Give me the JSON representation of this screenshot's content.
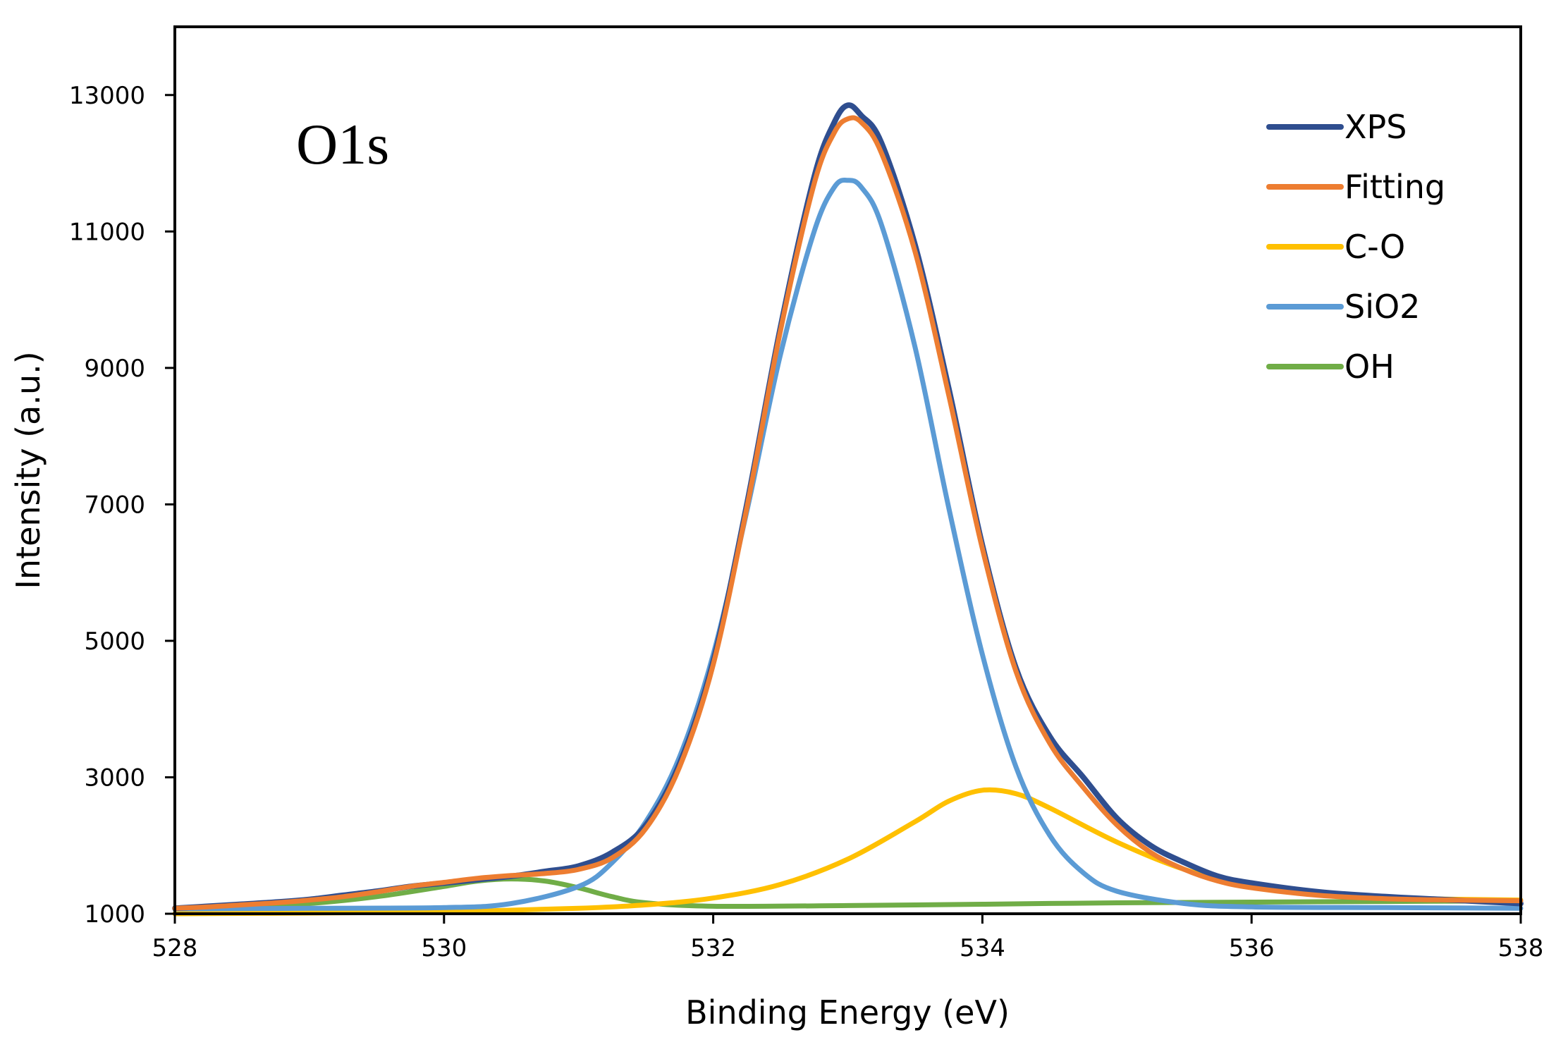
{
  "chart_data": {
    "type": "line",
    "title": "",
    "panel_label": "O1s",
    "xlabel": "Binding Energy (eV)",
    "ylabel": "Intensity (a.u.)",
    "xlim": [
      528,
      538
    ],
    "ylim": [
      1000,
      14000
    ],
    "xticks": [
      528,
      530,
      532,
      534,
      536,
      538
    ],
    "yticks": [
      1000,
      3000,
      5000,
      7000,
      9000,
      11000,
      13000
    ],
    "grid": false,
    "legend_position": "top-right",
    "series": [
      {
        "name": "XPS",
        "color": "#2F4E8F",
        "x": [
          528.0,
          528.25,
          528.5,
          528.75,
          529.0,
          529.25,
          529.5,
          529.75,
          530.0,
          530.25,
          530.5,
          530.75,
          531.0,
          531.25,
          531.5,
          531.75,
          532.0,
          532.25,
          532.5,
          532.75,
          532.9,
          533.0,
          533.1,
          533.25,
          533.5,
          533.75,
          534.0,
          534.25,
          534.5,
          534.75,
          535.0,
          535.25,
          535.5,
          535.75,
          536.0,
          536.5,
          537.0,
          537.5,
          538.0
        ],
        "y": [
          1080,
          1110,
          1140,
          1170,
          1210,
          1270,
          1330,
          1400,
          1450,
          1500,
          1550,
          1620,
          1700,
          1900,
          2300,
          3200,
          4700,
          7000,
          9600,
          11800,
          12600,
          12850,
          12700,
          12300,
          10800,
          8700,
          6400,
          4600,
          3600,
          3000,
          2400,
          2000,
          1750,
          1550,
          1450,
          1320,
          1250,
          1200,
          1150
        ]
      },
      {
        "name": "Fitting",
        "color": "#ED7D31",
        "x": [
          528.0,
          528.25,
          528.5,
          528.75,
          529.0,
          529.25,
          529.5,
          529.75,
          530.0,
          530.25,
          530.5,
          530.75,
          531.0,
          531.25,
          531.5,
          531.75,
          532.0,
          532.25,
          532.5,
          532.75,
          532.9,
          533.0,
          533.1,
          533.25,
          533.5,
          533.75,
          534.0,
          534.25,
          534.5,
          534.75,
          535.0,
          535.25,
          535.5,
          535.75,
          536.0,
          536.5,
          537.0,
          537.5,
          538.0
        ],
        "y": [
          1080,
          1100,
          1130,
          1160,
          1200,
          1250,
          1320,
          1400,
          1460,
          1520,
          1560,
          1590,
          1650,
          1820,
          2250,
          3150,
          4650,
          6950,
          9550,
          11700,
          12450,
          12650,
          12600,
          12150,
          10700,
          8600,
          6350,
          4550,
          3500,
          2850,
          2300,
          1900,
          1650,
          1480,
          1380,
          1270,
          1220,
          1200,
          1190
        ]
      },
      {
        "name": "C-O",
        "color": "#FFC000",
        "x": [
          528.0,
          529.0,
          530.0,
          531.0,
          531.5,
          532.0,
          532.5,
          533.0,
          533.5,
          533.75,
          534.0,
          534.25,
          534.5,
          535.0,
          535.5,
          536.0,
          536.5,
          537.0,
          538.0
        ],
        "y": [
          1000,
          1010,
          1030,
          1080,
          1130,
          1230,
          1430,
          1800,
          2350,
          2650,
          2810,
          2760,
          2550,
          2050,
          1650,
          1400,
          1280,
          1230,
          1200
        ]
      },
      {
        "name": "SiO2",
        "color": "#5B9BD5",
        "x": [
          528.0,
          529.0,
          530.0,
          530.5,
          531.0,
          531.25,
          531.5,
          531.75,
          532.0,
          532.25,
          532.5,
          532.75,
          532.9,
          533.0,
          533.1,
          533.25,
          533.5,
          533.75,
          534.0,
          534.25,
          534.5,
          534.75,
          535.0,
          535.5,
          536.0,
          537.0,
          538.0
        ],
        "y": [
          1070,
          1080,
          1090,
          1150,
          1400,
          1750,
          2350,
          3300,
          4800,
          6900,
          9200,
          11000,
          11650,
          11750,
          11650,
          11100,
          9300,
          6950,
          4800,
          3150,
          2150,
          1600,
          1330,
          1150,
          1100,
          1090,
          1080
        ]
      },
      {
        "name": "OH",
        "color": "#70AD47",
        "x": [
          528.0,
          528.5,
          529.0,
          529.5,
          530.0,
          530.25,
          530.5,
          530.75,
          531.0,
          531.25,
          531.5,
          532.0,
          533.0,
          534.0,
          535.0,
          536.0,
          537.0,
          538.0
        ],
        "y": [
          1070,
          1100,
          1150,
          1250,
          1400,
          1480,
          1510,
          1480,
          1380,
          1250,
          1160,
          1110,
          1120,
          1140,
          1160,
          1170,
          1180,
          1190
        ]
      }
    ]
  }
}
